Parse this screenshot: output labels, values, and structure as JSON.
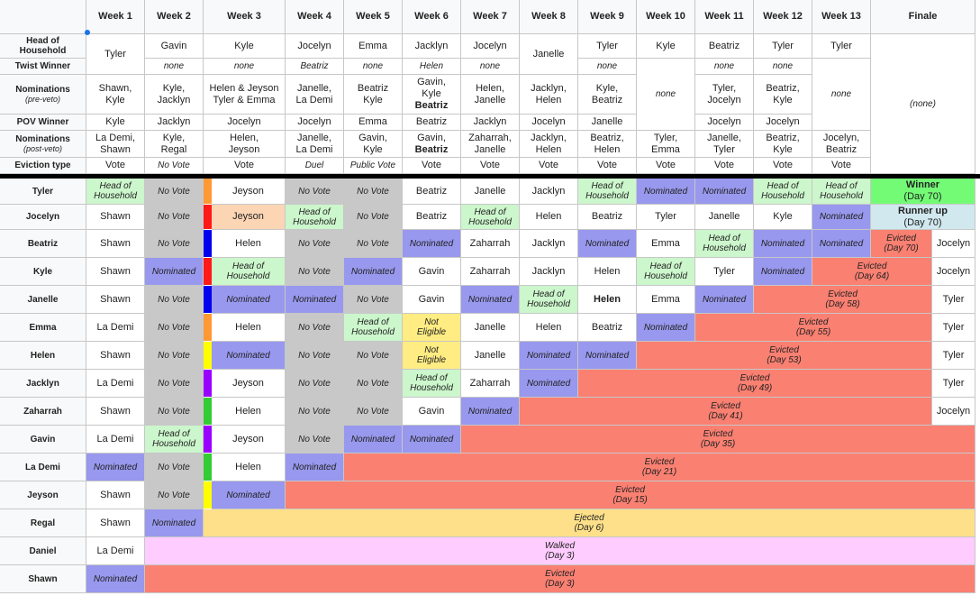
{
  "colors": {
    "hoh": "#ccf6cc",
    "nominated": "#9898ee",
    "no_vote": "#c8c8c8",
    "evicted": "#fa8072",
    "not_eligible": "#ffec82",
    "winner": "#73fb76",
    "runner_up": "#d1e8ef",
    "ejected": "#ffe08a",
    "walked": "#ffccff",
    "jeyson_pick": "#fcd5b4",
    "strip_orange": "#ff9933",
    "strip_red": "#ff1a1a",
    "strip_blue": "#0000ee",
    "strip_yellow": "#ffff00",
    "strip_purple": "#9900ff",
    "strip_green": "#33cc33"
  },
  "header": {
    "weeks": [
      "Week 1",
      "Week 2",
      "Week 3",
      "Week 4",
      "Week 5",
      "Week 6",
      "Week 7",
      "Week 8",
      "Week 9",
      "Week 10",
      "Week 11",
      "Week 12",
      "Week 13"
    ],
    "finale": "Finale"
  },
  "summary": {
    "hoh_label": "Head of\nHousehold",
    "twist_label": "Twist Winner",
    "nom_pre_label": "Nominations",
    "nom_pre_sub": "(pre-veto)",
    "pov_label": "POV Winner",
    "nom_post_label": "Nominations",
    "nom_post_sub": "(post-veto)",
    "eviction_label": "Eviction type",
    "hoh": [
      "Tyler",
      "Gavin",
      "Kyle",
      "Jocelyn",
      "Emma",
      "Jacklyn",
      "Jocelyn",
      "Janelle",
      "Tyler",
      "Kyle",
      "Beatriz",
      "Tyler",
      "Tyler"
    ],
    "twist": [
      "none",
      "none",
      "Beatriz",
      "none",
      "Helen",
      "none",
      "none",
      "none",
      "none"
    ],
    "nom_pre": [
      "Shawn,\nKyle",
      "Kyle,\nJacklyn",
      "Helen & Jeyson\nTyler & Emma",
      "Janelle,\nLa Demi",
      "Beatriz\nKyle",
      "Gavin,\nKyle",
      "Beatriz",
      "Helen,\nJanelle",
      "Jacklyn,\nHelen",
      "Kyle,\nBeatriz",
      "none",
      "Tyler,\nJocelyn",
      "Beatriz,\nKyle",
      "none"
    ],
    "pov": [
      "Kyle",
      "Jacklyn",
      "Jocelyn",
      "Jocelyn",
      "Emma",
      "Beatriz",
      "Jacklyn",
      "Jocelyn",
      "Janelle",
      "Jocelyn",
      "Jocelyn"
    ],
    "nom_post": [
      "La Demi,\nShawn",
      "Kyle,\nRegal",
      "Helen,\nJeyson",
      "Janelle,\nLa Demi",
      "Gavin,\nKyle",
      "Gavin,",
      "Beatriz",
      "Zaharrah,\nJanelle",
      "Jacklyn,\nHelen",
      "Beatriz,\nHelen",
      "Tyler,\nEmma",
      "Janelle,\nTyler",
      "Beatriz,\nKyle",
      "Jocelyn,\nBeatriz"
    ],
    "eviction": [
      "Vote",
      "No Vote",
      "Vote",
      "Duel",
      "Public Vote",
      "Vote",
      "Vote",
      "Vote",
      "Vote",
      "Vote",
      "Vote",
      "Vote",
      "Vote"
    ],
    "finale_none": "(none)"
  },
  "players": [
    "Tyler",
    "Jocelyn",
    "Beatriz",
    "Kyle",
    "Janelle",
    "Emma",
    "Helen",
    "Jacklyn",
    "Zaharrah",
    "Gavin",
    "La Demi",
    "Jeyson",
    "Regal",
    "Daniel",
    "Shawn"
  ],
  "grid": {
    "tyler": [
      "Head of\nHousehold",
      "No Vote",
      "Jeyson",
      "No Vote",
      "No Vote",
      "Beatriz",
      "Janelle",
      "Jacklyn",
      "Head of\nHousehold",
      "Nominated",
      "Nominated",
      "Head of\nHousehold",
      "Head of\nHousehold",
      "Winner",
      "(Day 70)"
    ],
    "jocelyn": [
      "Shawn",
      "No Vote",
      "Jeyson",
      "Head of\nHousehold",
      "No Vote",
      "Beatriz",
      "Head of\nHousehold",
      "Helen",
      "Beatriz",
      "Tyler",
      "Janelle",
      "Kyle",
      "Nominated",
      "Runner up",
      "(Day 70)"
    ],
    "beatriz": [
      "Shawn",
      "No Vote",
      "Helen",
      "No Vote",
      "No Vote",
      "Nominated",
      "Zaharrah",
      "Jacklyn",
      "Nominated",
      "Emma",
      "Head of\nHousehold",
      "Nominated",
      "Nominated",
      "Evicted\n(Day 70)",
      "Jocelyn"
    ],
    "kyle": [
      "Shawn",
      "Nominated",
      "Head of\nHousehold",
      "No Vote",
      "Nominated",
      "Gavin",
      "Zaharrah",
      "Jacklyn",
      "Helen",
      "Head of\nHousehold",
      "Tyler",
      "Nominated",
      "Evicted\n(Day 64)",
      "Jocelyn"
    ],
    "janelle": [
      "Shawn",
      "No Vote",
      "Nominated",
      "Nominated",
      "No Vote",
      "Gavin",
      "Nominated",
      "Head of\nHousehold",
      "Helen",
      "Emma",
      "Nominated",
      "Evicted\n(Day 58)",
      "Tyler"
    ],
    "emma": [
      "La Demi",
      "No Vote",
      "Helen",
      "No Vote",
      "Head of\nHousehold",
      "Not\nEligible",
      "Janelle",
      "Helen",
      "Beatriz",
      "Nominated",
      "Evicted\n(Day 55)",
      "Tyler"
    ],
    "helen": [
      "Shawn",
      "No Vote",
      "Nominated",
      "No Vote",
      "No Vote",
      "Not\nEligible",
      "Janelle",
      "Nominated",
      "Nominated",
      "Evicted\n(Day 53)",
      "Tyler"
    ],
    "jacklyn": [
      "La Demi",
      "No Vote",
      "Jeyson",
      "No Vote",
      "No Vote",
      "Head of\nHousehold",
      "Zaharrah",
      "Nominated",
      "Evicted\n(Day 49)",
      "Tyler"
    ],
    "zaharrah": [
      "Shawn",
      "No Vote",
      "Helen",
      "No Vote",
      "No Vote",
      "Gavin",
      "Nominated",
      "Evicted\n(Day 41)",
      "Jocelyn"
    ],
    "gavin": [
      "La Demi",
      "Head of\nHousehold",
      "Jeyson",
      "No Vote",
      "Nominated",
      "Nominated",
      "Evicted\n(Day 35)"
    ],
    "lademi": [
      "Nominated",
      "No Vote",
      "Helen",
      "Nominated",
      "Evicted\n(Day 21)"
    ],
    "jeyson": [
      "Shawn",
      "No Vote",
      "Nominated",
      "Evicted\n(Day 15)"
    ],
    "regal": [
      "Shawn",
      "Nominated",
      "Ejected\n(Day 6)"
    ],
    "daniel": [
      "La Demi",
      "Walked\n(Day 3)"
    ],
    "shawn": [
      "Nominated",
      "Evicted\n(Day 3)"
    ]
  }
}
